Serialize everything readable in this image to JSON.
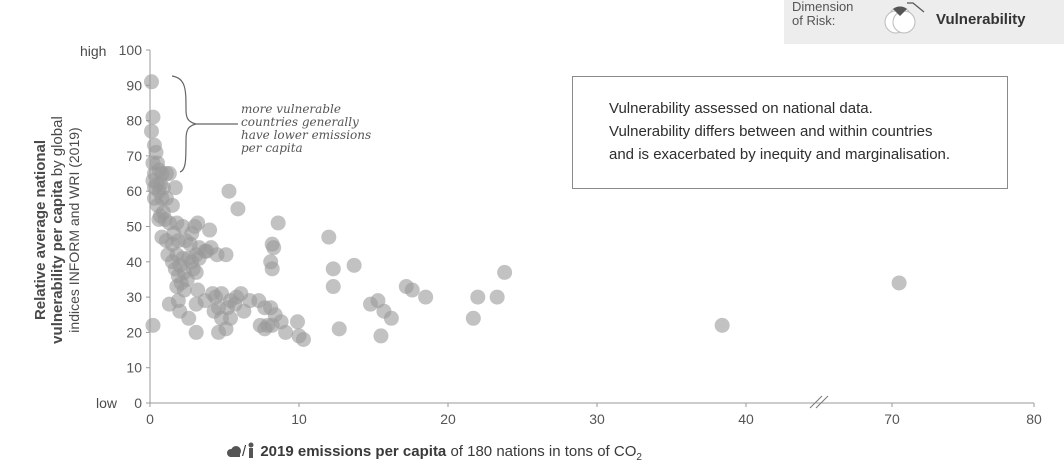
{
  "legend": {
    "label_line1": "Dimension",
    "label_line2": "of Risk:",
    "value": "Vulnerability",
    "colors": {
      "dark": "#555555",
      "outline": "#bbbbbb"
    }
  },
  "note": {
    "line1": "Vulnerability assessed on national data.",
    "line2": "Vulnerability differs between and within countries",
    "line3": "and is exacerbated by inequity and marginalisation."
  },
  "annotation": {
    "line1": "more vulnerable",
    "line2": "countries generally",
    "line3": "have lower emissions",
    "line4": "per capita"
  },
  "y_title": {
    "line1": "Relative average national",
    "line2_bold": "vulnerability per capita",
    "line2_normal": " by global",
    "line3": "indices INFORM and WRI (2019)"
  },
  "x_title": {
    "bold": "2019 emissions per capita",
    "normal": " of 180 nations in tons of CO",
    "sub": "2",
    "icon_text": "/",
    "icons": [
      "cloud-icon",
      "person-icon"
    ]
  },
  "chart_data": {
    "type": "scatter",
    "xlim": [
      0,
      80
    ],
    "ylim": [
      0,
      100
    ],
    "xticks": [
      0,
      10,
      20,
      30,
      40,
      70,
      80
    ],
    "xtick_labels": [
      "0",
      "10",
      "20",
      "30",
      "40",
      "70",
      "80"
    ],
    "axis_break_between": [
      40,
      70
    ],
    "yticks": [
      0,
      10,
      20,
      30,
      40,
      50,
      60,
      70,
      80,
      90,
      100
    ],
    "ytick_labels": [
      "0",
      "10",
      "20",
      "30",
      "40",
      "50",
      "60",
      "70",
      "80",
      "90",
      "100"
    ],
    "y_low_label": "low",
    "y_high_label": "high",
    "grid": false,
    "point_color": "#9a9a9a",
    "points": [
      {
        "x": 0.1,
        "y": 91
      },
      {
        "x": 0.2,
        "y": 81
      },
      {
        "x": 0.1,
        "y": 77
      },
      {
        "x": 0.3,
        "y": 73
      },
      {
        "x": 0.4,
        "y": 71
      },
      {
        "x": 0.2,
        "y": 68
      },
      {
        "x": 0.5,
        "y": 68
      },
      {
        "x": 0.6,
        "y": 66
      },
      {
        "x": 0.3,
        "y": 65
      },
      {
        "x": 0.8,
        "y": 65
      },
      {
        "x": 1.1,
        "y": 65
      },
      {
        "x": 1.3,
        "y": 65
      },
      {
        "x": 0.2,
        "y": 63
      },
      {
        "x": 0.5,
        "y": 62
      },
      {
        "x": 0.7,
        "y": 62
      },
      {
        "x": 0.3,
        "y": 61
      },
      {
        "x": 0.9,
        "y": 61
      },
      {
        "x": 1.7,
        "y": 61
      },
      {
        "x": 0.6,
        "y": 60
      },
      {
        "x": 0.3,
        "y": 58
      },
      {
        "x": 0.8,
        "y": 58
      },
      {
        "x": 1.1,
        "y": 58
      },
      {
        "x": 0.5,
        "y": 56
      },
      {
        "x": 1.5,
        "y": 56
      },
      {
        "x": 0.9,
        "y": 54
      },
      {
        "x": 0.7,
        "y": 53
      },
      {
        "x": 0.6,
        "y": 52
      },
      {
        "x": 1.0,
        "y": 52
      },
      {
        "x": 1.3,
        "y": 51
      },
      {
        "x": 1.8,
        "y": 51
      },
      {
        "x": 2.2,
        "y": 50
      },
      {
        "x": 3.2,
        "y": 51
      },
      {
        "x": 2.8,
        "y": 48
      },
      {
        "x": 3.0,
        "y": 50
      },
      {
        "x": 0.8,
        "y": 47
      },
      {
        "x": 1.6,
        "y": 48
      },
      {
        "x": 2.4,
        "y": 46
      },
      {
        "x": 1.1,
        "y": 46
      },
      {
        "x": 1.5,
        "y": 45
      },
      {
        "x": 1.9,
        "y": 46
      },
      {
        "x": 2.7,
        "y": 45
      },
      {
        "x": 3.3,
        "y": 44
      },
      {
        "x": 3.8,
        "y": 43
      },
      {
        "x": 4.1,
        "y": 44
      },
      {
        "x": 4.0,
        "y": 49
      },
      {
        "x": 1.2,
        "y": 42
      },
      {
        "x": 1.8,
        "y": 42
      },
      {
        "x": 2.2,
        "y": 41
      },
      {
        "x": 2.6,
        "y": 41
      },
      {
        "x": 3.1,
        "y": 42
      },
      {
        "x": 3.7,
        "y": 43
      },
      {
        "x": 4.5,
        "y": 42
      },
      {
        "x": 5.1,
        "y": 42
      },
      {
        "x": 1.5,
        "y": 40
      },
      {
        "x": 2.0,
        "y": 39
      },
      {
        "x": 2.8,
        "y": 40
      },
      {
        "x": 3.3,
        "y": 41
      },
      {
        "x": 1.7,
        "y": 38
      },
      {
        "x": 2.3,
        "y": 37
      },
      {
        "x": 2.9,
        "y": 38
      },
      {
        "x": 3.1,
        "y": 37
      },
      {
        "x": 1.9,
        "y": 36
      },
      {
        "x": 2.5,
        "y": 35
      },
      {
        "x": 2.1,
        "y": 34
      },
      {
        "x": 1.8,
        "y": 33
      },
      {
        "x": 2.3,
        "y": 32
      },
      {
        "x": 3.2,
        "y": 32
      },
      {
        "x": 4.2,
        "y": 31
      },
      {
        "x": 4.8,
        "y": 31
      },
      {
        "x": 4.4,
        "y": 30
      },
      {
        "x": 5.8,
        "y": 30
      },
      {
        "x": 6.1,
        "y": 31
      },
      {
        "x": 5.4,
        "y": 29
      },
      {
        "x": 6.7,
        "y": 29
      },
      {
        "x": 1.3,
        "y": 28
      },
      {
        "x": 1.9,
        "y": 29
      },
      {
        "x": 3.1,
        "y": 28
      },
      {
        "x": 3.7,
        "y": 29
      },
      {
        "x": 4.6,
        "y": 27
      },
      {
        "x": 5.2,
        "y": 27
      },
      {
        "x": 5.7,
        "y": 28
      },
      {
        "x": 6.3,
        "y": 26
      },
      {
        "x": 2.0,
        "y": 26
      },
      {
        "x": 4.3,
        "y": 26
      },
      {
        "x": 4.8,
        "y": 24
      },
      {
        "x": 5.4,
        "y": 24
      },
      {
        "x": 2.6,
        "y": 24
      },
      {
        "x": 4.6,
        "y": 20
      },
      {
        "x": 5.1,
        "y": 21
      },
      {
        "x": 3.1,
        "y": 20
      },
      {
        "x": 5.3,
        "y": 60
      },
      {
        "x": 5.9,
        "y": 55
      },
      {
        "x": 7.3,
        "y": 29
      },
      {
        "x": 7.7,
        "y": 27
      },
      {
        "x": 8.2,
        "y": 45
      },
      {
        "x": 8.3,
        "y": 44
      },
      {
        "x": 8.1,
        "y": 40
      },
      {
        "x": 8.2,
        "y": 38
      },
      {
        "x": 8.6,
        "y": 51
      },
      {
        "x": 8.1,
        "y": 27
      },
      {
        "x": 8.4,
        "y": 25
      },
      {
        "x": 8.8,
        "y": 23
      },
      {
        "x": 7.4,
        "y": 22
      },
      {
        "x": 7.9,
        "y": 22
      },
      {
        "x": 8.2,
        "y": 22
      },
      {
        "x": 7.7,
        "y": 21
      },
      {
        "x": 9.1,
        "y": 20
      },
      {
        "x": 9.9,
        "y": 23
      },
      {
        "x": 10.0,
        "y": 19
      },
      {
        "x": 10.3,
        "y": 18
      },
      {
        "x": 12.0,
        "y": 47
      },
      {
        "x": 12.3,
        "y": 38
      },
      {
        "x": 12.3,
        "y": 33
      },
      {
        "x": 13.7,
        "y": 39
      },
      {
        "x": 12.7,
        "y": 21
      },
      {
        "x": 14.8,
        "y": 28
      },
      {
        "x": 15.3,
        "y": 29
      },
      {
        "x": 15.7,
        "y": 26
      },
      {
        "x": 16.2,
        "y": 24
      },
      {
        "x": 15.5,
        "y": 19
      },
      {
        "x": 17.2,
        "y": 33
      },
      {
        "x": 17.6,
        "y": 32
      },
      {
        "x": 18.5,
        "y": 30
      },
      {
        "x": 21.7,
        "y": 24
      },
      {
        "x": 22.0,
        "y": 30
      },
      {
        "x": 23.3,
        "y": 30
      },
      {
        "x": 23.8,
        "y": 37
      },
      {
        "x": 0.2,
        "y": 22
      },
      {
        "x": 38.4,
        "y": 22
      },
      {
        "x": 70.5,
        "y": 34
      }
    ]
  }
}
